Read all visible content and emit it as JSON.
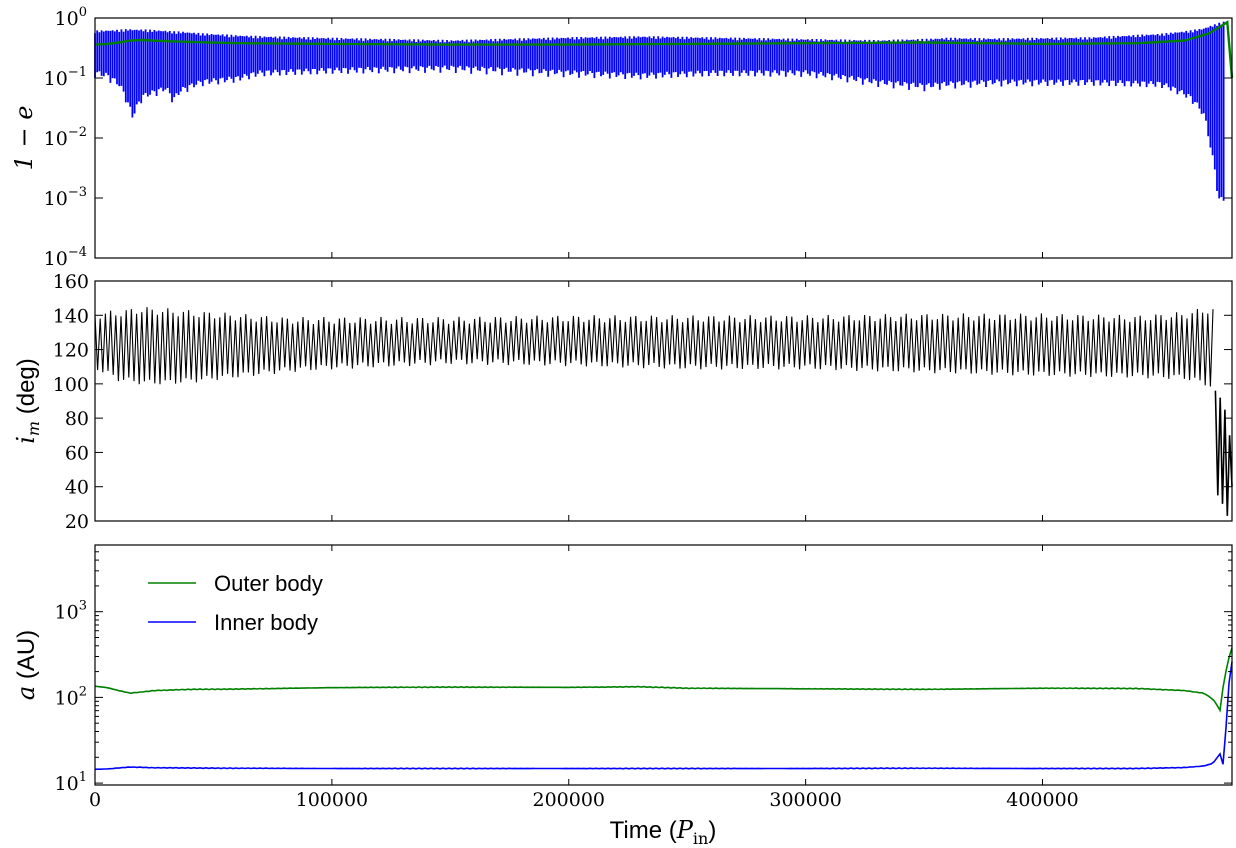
{
  "figure": {
    "xlabel_text": "Time (",
    "xlabel_math": "P",
    "xlabel_sub": "in",
    "xlabel_close": ")",
    "x_ticks": [
      0,
      100000,
      200000,
      300000,
      400000
    ],
    "x_tick_labels": [
      "0",
      "100000",
      "200000",
      "300000",
      "400000"
    ],
    "xlim": [
      0,
      480000
    ]
  },
  "chart_data": [
    {
      "type": "line",
      "panel": "top",
      "ylabel": "1 − e",
      "yscale": "log",
      "ylim": [
        0.0001,
        1
      ],
      "y_tick_labels": [
        {
          "base": "10",
          "exp": "0",
          "value": 1
        },
        {
          "base": "10",
          "exp": "−1",
          "value": 0.1
        },
        {
          "base": "10",
          "exp": "−2",
          "value": 0.01
        },
        {
          "base": "10",
          "exp": "−3",
          "value": 0.001
        },
        {
          "base": "10",
          "exp": "−4",
          "value": 0.0001
        }
      ],
      "series": [
        {
          "color": "#0000ff",
          "style": "envelope",
          "x": [
            0,
            5000,
            10000,
            14000,
            16000,
            20000,
            30000,
            33000,
            36000,
            45000,
            60000,
            70000,
            100000,
            150000,
            200000,
            230000,
            260000,
            300000,
            330000,
            350000,
            360000,
            380000,
            420000,
            450000,
            462000,
            468000,
            471000,
            474000,
            477000
          ],
          "y_upper": [
            0.62,
            0.63,
            0.64,
            0.66,
            0.65,
            0.65,
            0.62,
            0.6,
            0.6,
            0.56,
            0.52,
            0.5,
            0.47,
            0.43,
            0.48,
            0.5,
            0.48,
            0.45,
            0.43,
            0.45,
            0.47,
            0.46,
            0.48,
            0.55,
            0.62,
            0.68,
            0.75,
            0.82,
            0.88
          ],
          "y_lower": [
            0.1,
            0.09,
            0.065,
            0.03,
            0.018,
            0.04,
            0.055,
            0.035,
            0.05,
            0.07,
            0.08,
            0.1,
            0.11,
            0.12,
            0.1,
            0.09,
            0.1,
            0.1,
            0.07,
            0.06,
            0.065,
            0.07,
            0.07,
            0.065,
            0.04,
            0.02,
            0.005,
            0.0007,
            0.0009
          ]
        },
        {
          "color": "#008000",
          "style": "line",
          "x": [
            0,
            5000,
            10000,
            15000,
            20000,
            30000,
            40000,
            60000,
            100000,
            150000,
            200000,
            250000,
            300000,
            350000,
            400000,
            440000,
            460000,
            470000,
            475000,
            478000,
            480000
          ],
          "y": [
            0.36,
            0.37,
            0.39,
            0.42,
            0.43,
            0.41,
            0.4,
            0.38,
            0.37,
            0.36,
            0.36,
            0.37,
            0.38,
            0.39,
            0.37,
            0.38,
            0.42,
            0.55,
            0.72,
            0.85,
            0.1
          ]
        }
      ]
    },
    {
      "type": "line",
      "panel": "middle",
      "ylabel": "i",
      "ylabel_sub": "m",
      "ylabel_unit": " (deg)",
      "ylim": [
        20,
        160
      ],
      "y_ticks": [
        20,
        40,
        60,
        80,
        100,
        120,
        140,
        160
      ],
      "y_tick_labels": [
        "20",
        "40",
        "60",
        "80",
        "100",
        "120",
        "140",
        "160"
      ],
      "series": [
        {
          "color": "#000000",
          "style": "oscillation",
          "x": [
            0,
            10000,
            20000,
            30000,
            40000,
            60000,
            80000,
            100000,
            150000,
            200000,
            250000,
            300000,
            350000,
            400000,
            440000,
            460000,
            470000,
            473000
          ],
          "y_upper": [
            140,
            141,
            143,
            142,
            141,
            139,
            137,
            137,
            137,
            138,
            138,
            138,
            139,
            139,
            138,
            140,
            143,
            142
          ],
          "y_lower": [
            110,
            103,
            101,
            101,
            102,
            105,
            108,
            110,
            113,
            112,
            110,
            110,
            108,
            106,
            105,
            104,
            100,
            96
          ]
        },
        {
          "color": "#000000",
          "style": "tail",
          "x": [
            473000,
            474000,
            475000,
            476000,
            477000,
            478000,
            479000,
            480000
          ],
          "y": [
            96,
            35,
            92,
            30,
            85,
            23,
            70,
            40
          ]
        }
      ]
    },
    {
      "type": "line",
      "panel": "bottom",
      "ylabel": "a",
      "ylabel_unit": " (AU)",
      "yscale": "log",
      "ylim": [
        9.5,
        6000
      ],
      "y_tick_labels": [
        {
          "base": "10",
          "exp": "1",
          "value": 10
        },
        {
          "base": "10",
          "exp": "2",
          "value": 100
        },
        {
          "base": "10",
          "exp": "3",
          "value": 1000
        }
      ],
      "legend": {
        "position": "upper-left"
      },
      "series": [
        {
          "name": "Outer body",
          "color": "#008000",
          "x": [
            0,
            5000,
            10000,
            15000,
            25000,
            40000,
            60000,
            100000,
            150000,
            200000,
            230000,
            250000,
            300000,
            350000,
            400000,
            440000,
            460000,
            468000,
            472000,
            475000,
            477000,
            480000
          ],
          "y": [
            135,
            130,
            120,
            112,
            120,
            124,
            125,
            130,
            132,
            131,
            133,
            128,
            126,
            124,
            128,
            127,
            120,
            112,
            95,
            70,
            170,
            380
          ]
        },
        {
          "name": "Inner body",
          "color": "#0000ff",
          "x": [
            0,
            5000,
            10000,
            15000,
            25000,
            40000,
            60000,
            100000,
            200000,
            300000,
            350000,
            400000,
            440000,
            460000,
            468000,
            472000,
            475000,
            477000,
            478000,
            480000
          ],
          "y": [
            14.5,
            14.6,
            15.0,
            15.4,
            15.1,
            15.0,
            14.9,
            14.8,
            14.8,
            14.8,
            14.9,
            14.8,
            14.8,
            15.2,
            15.8,
            17.0,
            22.0,
            13.0,
            80.0,
            260.0
          ]
        }
      ]
    }
  ]
}
